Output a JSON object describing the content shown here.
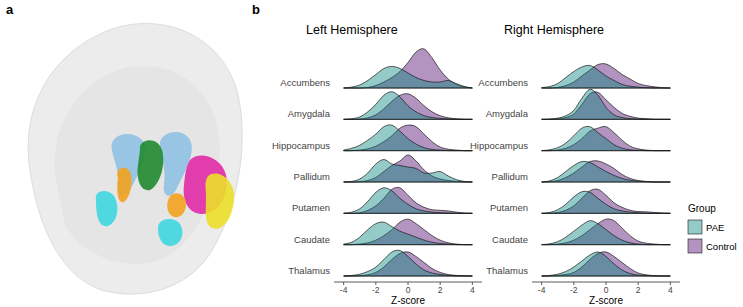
{
  "panel_labels": [
    "a",
    "b"
  ],
  "chart_data": [
    {
      "type": "ridgeline",
      "title": "Left Hemisphere",
      "x_label": "Z-score",
      "categories": [
        "Accumbens",
        "Amygdala",
        "Hippocampus",
        "Pallidum",
        "Putamen",
        "Caudate",
        "Thalamus"
      ],
      "x": [
        -4,
        -3.5,
        -3,
        -2.5,
        -2,
        -1.5,
        -1,
        -0.5,
        0,
        0.5,
        1,
        1.5,
        2,
        2.5,
        3,
        3.5,
        4
      ],
      "xlim": [
        -4.6,
        4.6
      ],
      "xticks": [
        -4,
        -2,
        0,
        2,
        4
      ],
      "grid": false,
      "series": [
        {
          "name": "Control",
          "color": "#4a006a",
          "values": [
            [
              0,
              0,
              0,
              0.02,
              0.08,
              0.2,
              0.35,
              0.55,
              0.85,
              1.2,
              1.3,
              1.0,
              0.6,
              0.3,
              0.12,
              0.04,
              0
            ],
            [
              0,
              0,
              0.01,
              0.05,
              0.15,
              0.35,
              0.6,
              0.8,
              0.85,
              0.7,
              0.45,
              0.25,
              0.12,
              0.05,
              0.02,
              0,
              0
            ],
            [
              0,
              0,
              0.02,
              0.06,
              0.15,
              0.3,
              0.5,
              0.75,
              0.85,
              0.8,
              0.55,
              0.3,
              0.12,
              0.05,
              0.02,
              0,
              0
            ],
            [
              0,
              0,
              0.01,
              0.05,
              0.15,
              0.35,
              0.55,
              0.7,
              0.9,
              0.7,
              0.4,
              0.2,
              0.1,
              0.05,
              0.02,
              0,
              0
            ],
            [
              0,
              0,
              0.02,
              0.1,
              0.25,
              0.5,
              0.8,
              0.85,
              0.6,
              0.35,
              0.2,
              0.12,
              0.1,
              0.08,
              0.04,
              0.01,
              0
            ],
            [
              0,
              0,
              0.02,
              0.06,
              0.15,
              0.3,
              0.5,
              0.75,
              0.85,
              0.7,
              0.5,
              0.3,
              0.15,
              0.06,
              0.02,
              0,
              0
            ],
            [
              0,
              0,
              0.01,
              0.04,
              0.12,
              0.3,
              0.55,
              0.75,
              0.8,
              0.65,
              0.45,
              0.25,
              0.12,
              0.05,
              0.02,
              0.01,
              0
            ]
          ]
        },
        {
          "name": "PAE",
          "color": "#00807a",
          "values": [
            [
              0,
              0.03,
              0.1,
              0.25,
              0.45,
              0.65,
              0.72,
              0.65,
              0.5,
              0.35,
              0.25,
              0.2,
              0.2,
              0.25,
              0.15,
              0.05,
              0
            ],
            [
              0,
              0.02,
              0.08,
              0.25,
              0.5,
              0.8,
              0.92,
              0.75,
              0.45,
              0.25,
              0.12,
              0.06,
              0.03,
              0.01,
              0,
              0,
              0
            ],
            [
              0.02,
              0.08,
              0.18,
              0.35,
              0.55,
              0.8,
              0.85,
              0.65,
              0.4,
              0.22,
              0.1,
              0.04,
              0.02,
              0,
              0,
              0,
              0
            ],
            [
              0,
              0.02,
              0.1,
              0.3,
              0.6,
              0.75,
              0.6,
              0.55,
              0.5,
              0.45,
              0.3,
              0.3,
              0.35,
              0.2,
              0.08,
              0.02,
              0
            ],
            [
              0,
              0.04,
              0.15,
              0.4,
              0.7,
              0.85,
              0.75,
              0.5,
              0.3,
              0.15,
              0.08,
              0.04,
              0.02,
              0.01,
              0,
              0,
              0
            ],
            [
              0.02,
              0.08,
              0.25,
              0.5,
              0.7,
              0.75,
              0.6,
              0.45,
              0.35,
              0.25,
              0.15,
              0.08,
              0.04,
              0.02,
              0,
              0,
              0
            ],
            [
              0,
              0.02,
              0.06,
              0.15,
              0.3,
              0.55,
              0.8,
              0.85,
              0.65,
              0.4,
              0.2,
              0.1,
              0.05,
              0.02,
              0,
              0,
              0
            ]
          ]
        }
      ]
    },
    {
      "type": "ridgeline",
      "title": "Right Hemisphere",
      "x_label": "Z-score",
      "categories": [
        "Accumbens",
        "Amygdala",
        "Hippocampus",
        "Pallidum",
        "Putamen",
        "Caudate",
        "Thalamus"
      ],
      "x": [
        -4,
        -3.5,
        -3,
        -2.5,
        -2,
        -1.5,
        -1,
        -0.5,
        0,
        0.5,
        1,
        1.5,
        2,
        2.5,
        3,
        3.5,
        4
      ],
      "xlim": [
        -4.6,
        4.6
      ],
      "xticks": [
        -4,
        -2,
        0,
        2,
        4
      ],
      "grid": false,
      "legend": "right",
      "legend_title": "Group",
      "series": [
        {
          "name": "Control",
          "color": "#4a006a",
          "values": [
            [
              0,
              0,
              0.02,
              0.08,
              0.2,
              0.4,
              0.6,
              0.78,
              0.8,
              0.65,
              0.45,
              0.3,
              0.15,
              0.08,
              0.04,
              0.01,
              0
            ],
            [
              0,
              0,
              0.02,
              0.06,
              0.18,
              0.5,
              0.85,
              0.9,
              0.65,
              0.4,
              0.2,
              0.1,
              0.04,
              0.02,
              0,
              0,
              0
            ],
            [
              0,
              0,
              0.02,
              0.08,
              0.2,
              0.4,
              0.65,
              0.75,
              0.8,
              0.6,
              0.35,
              0.15,
              0.06,
              0.02,
              0,
              0,
              0
            ],
            [
              0,
              0.01,
              0.05,
              0.15,
              0.3,
              0.5,
              0.68,
              0.7,
              0.6,
              0.45,
              0.25,
              0.12,
              0.05,
              0.02,
              0,
              0,
              0
            ],
            [
              0,
              0,
              0.03,
              0.1,
              0.25,
              0.5,
              0.75,
              0.8,
              0.6,
              0.35,
              0.2,
              0.1,
              0.06,
              0.05,
              0.03,
              0.01,
              0
            ],
            [
              0,
              0,
              0.02,
              0.06,
              0.15,
              0.3,
              0.5,
              0.7,
              0.85,
              0.8,
              0.55,
              0.3,
              0.12,
              0.05,
              0.02,
              0,
              0
            ],
            [
              0,
              0,
              0.02,
              0.05,
              0.12,
              0.3,
              0.55,
              0.75,
              0.8,
              0.65,
              0.45,
              0.25,
              0.1,
              0.04,
              0.01,
              0,
              0
            ]
          ]
        },
        {
          "name": "PAE",
          "color": "#00807a",
          "values": [
            [
              0.01,
              0.05,
              0.15,
              0.35,
              0.55,
              0.7,
              0.75,
              0.6,
              0.4,
              0.25,
              0.12,
              0.06,
              0.03,
              0.01,
              0,
              0,
              0
            ],
            [
              0,
              0.01,
              0.04,
              0.12,
              0.3,
              0.7,
              1.0,
              0.8,
              0.4,
              0.15,
              0.06,
              0.02,
              0.01,
              0,
              0,
              0,
              0
            ],
            [
              0,
              0.03,
              0.1,
              0.25,
              0.5,
              0.75,
              0.8,
              0.6,
              0.4,
              0.2,
              0.08,
              0.03,
              0.01,
              0,
              0,
              0,
              0
            ],
            [
              0,
              0.04,
              0.15,
              0.35,
              0.55,
              0.68,
              0.65,
              0.5,
              0.35,
              0.22,
              0.12,
              0.06,
              0.03,
              0.01,
              0,
              0,
              0
            ],
            [
              0,
              0.03,
              0.12,
              0.3,
              0.55,
              0.72,
              0.7,
              0.5,
              0.3,
              0.15,
              0.08,
              0.04,
              0.02,
              0,
              0,
              0,
              0
            ],
            [
              0,
              0.03,
              0.1,
              0.25,
              0.45,
              0.65,
              0.8,
              0.7,
              0.5,
              0.3,
              0.15,
              0.06,
              0.02,
              0,
              0,
              0,
              0
            ],
            [
              0,
              0.02,
              0.06,
              0.15,
              0.3,
              0.5,
              0.7,
              0.8,
              0.65,
              0.4,
              0.2,
              0.08,
              0.03,
              0.01,
              0,
              0,
              0
            ]
          ]
        }
      ]
    }
  ]
}
